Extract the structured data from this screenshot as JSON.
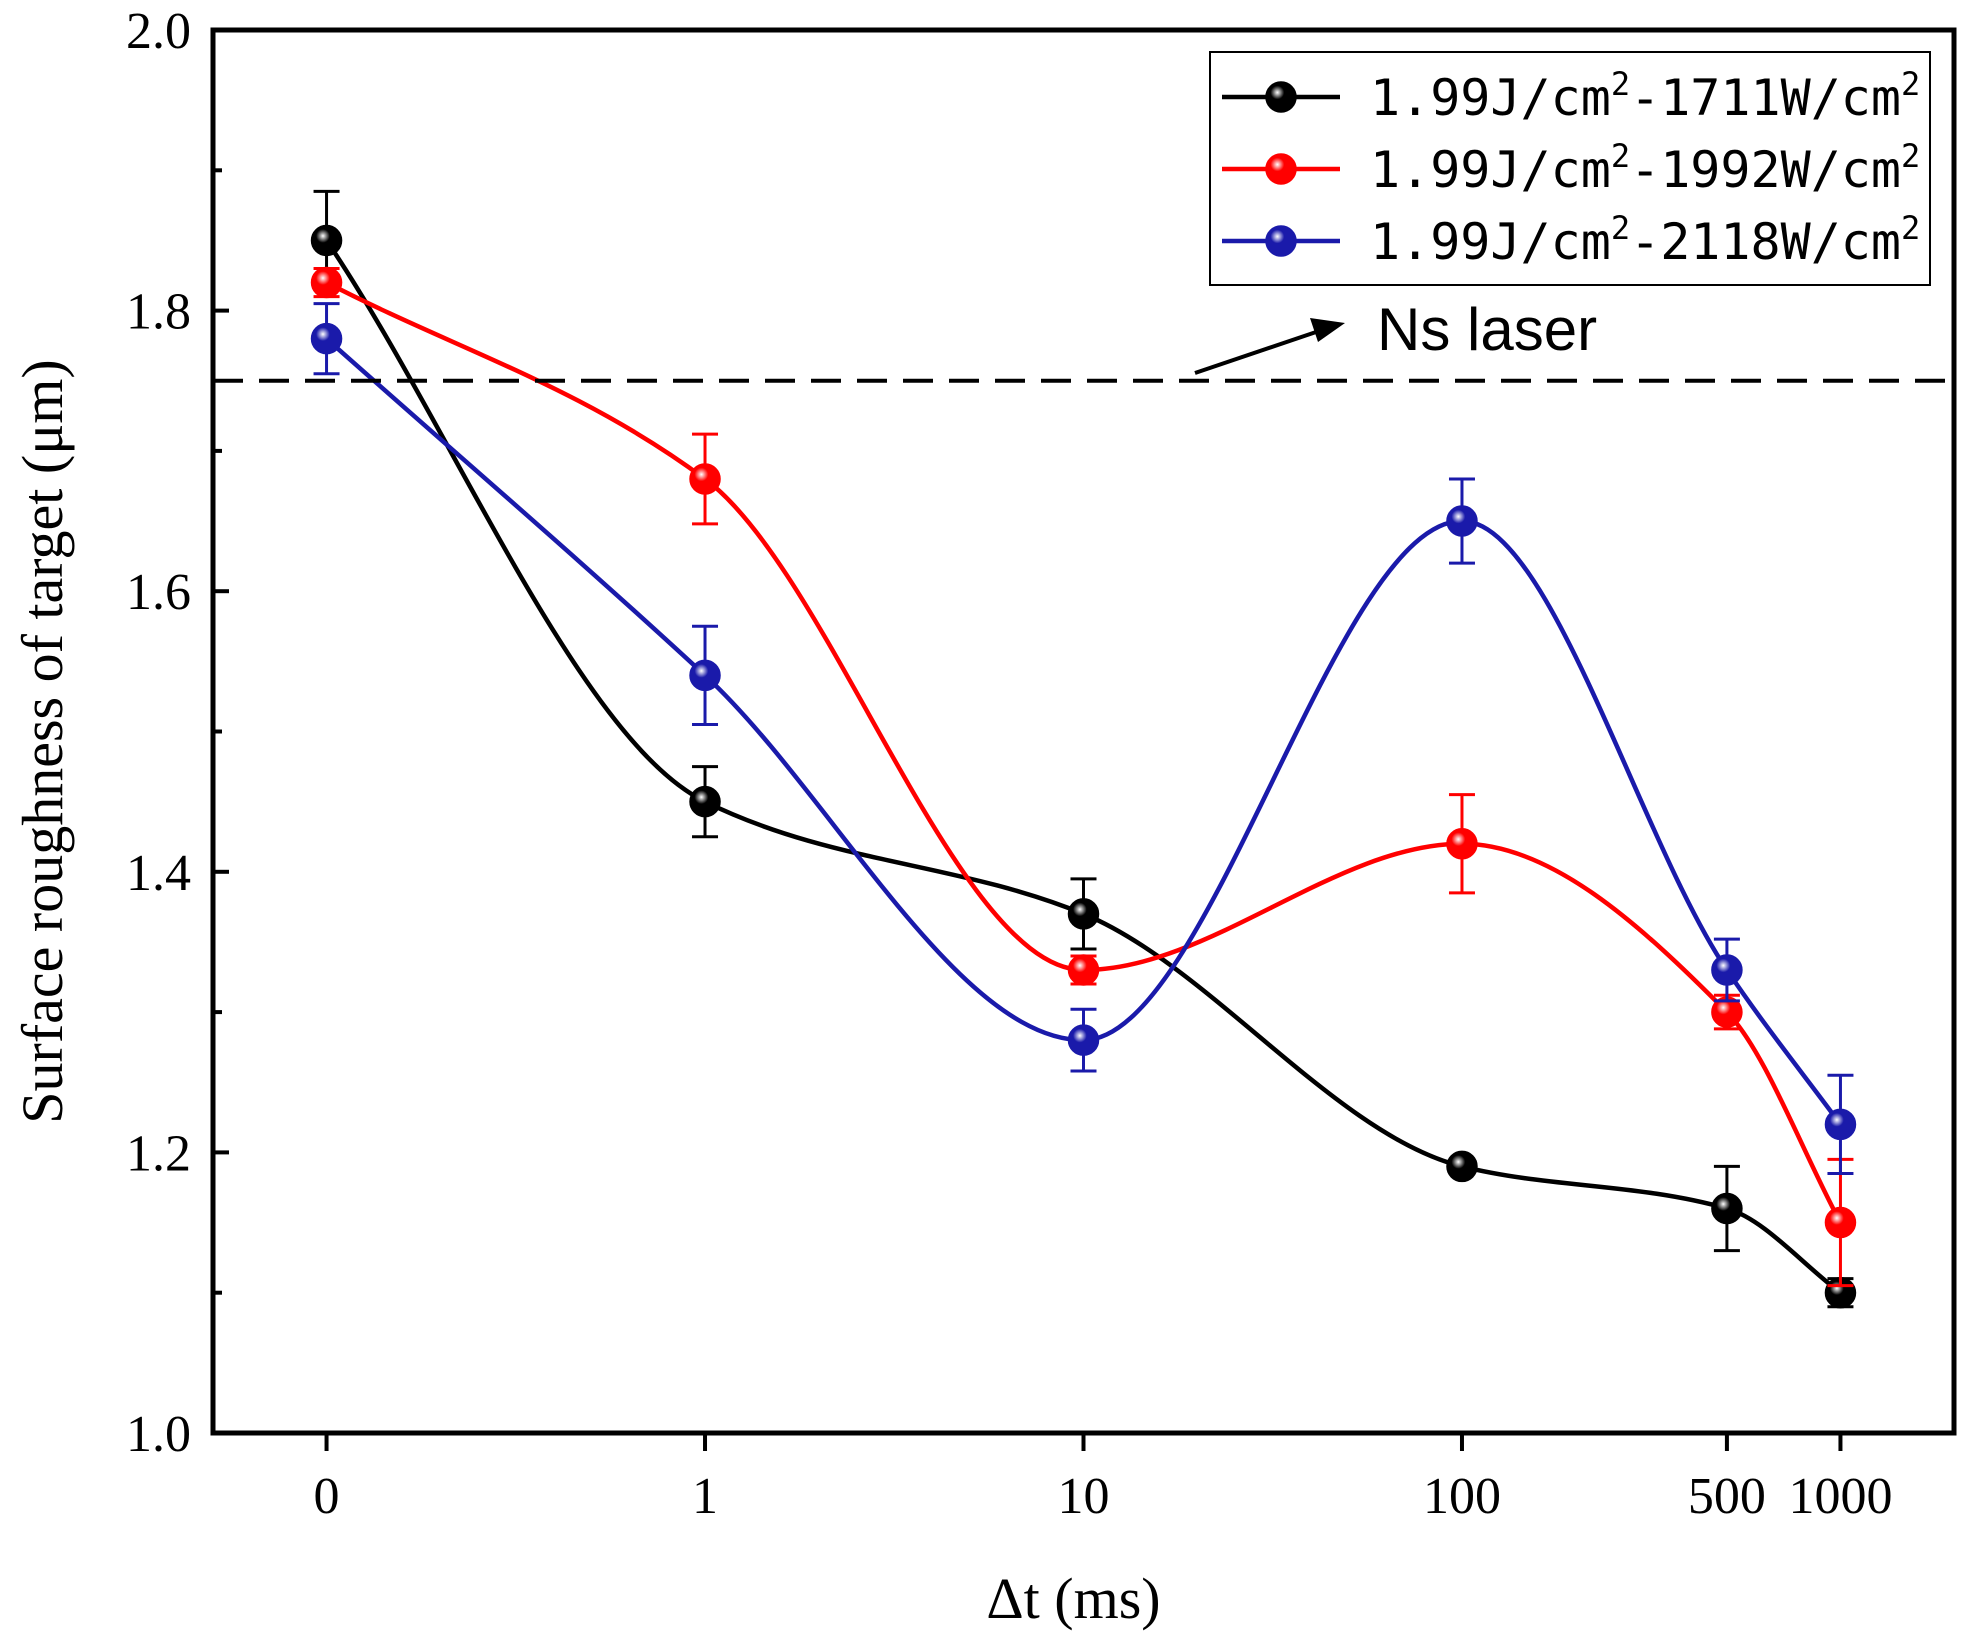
{
  "chart_data": {
    "type": "line",
    "title": "",
    "xlabel": "Δt (ms)",
    "ylabel": "Surface roughness of target (μm)",
    "categories": [
      "0",
      "1",
      "10",
      "100",
      "500",
      "1000"
    ],
    "x_positions": [
      0,
      1,
      2,
      3,
      3.7,
      4
    ],
    "xlim": [
      -0.3,
      4.3
    ],
    "ylim": [
      1.0,
      2.0
    ],
    "yticks": [
      "1.0",
      "1.2",
      "1.4",
      "1.6",
      "1.8",
      "2.0"
    ],
    "series": [
      {
        "name": "1.99J/cm²-1711W/cm²",
        "name_parts": [
          "1.99J/cm",
          "2",
          "-1711W/cm",
          "2"
        ],
        "color": "#000000",
        "values": [
          1.85,
          1.45,
          1.37,
          1.19,
          1.16,
          1.1
        ],
        "errors": [
          0.035,
          0.025,
          0.025,
          0.005,
          0.03,
          0.01
        ]
      },
      {
        "name": "1.99J/cm²-1992W/cm²",
        "name_parts": [
          "1.99J/cm",
          "2",
          "-1992W/cm",
          "2"
        ],
        "color": "#ff0000",
        "values": [
          1.82,
          1.68,
          1.33,
          1.42,
          1.3,
          1.15
        ],
        "errors": [
          0.01,
          0.032,
          0.01,
          0.035,
          0.012,
          0.045
        ]
      },
      {
        "name": "1.99J/cm²-2118W/cm²",
        "name_parts": [
          "1.99J/cm",
          "2",
          "-2118W/cm",
          "2"
        ],
        "color": "#1a1aaa",
        "values": [
          1.78,
          1.54,
          1.28,
          1.65,
          1.33,
          1.22
        ],
        "errors": [
          0.025,
          0.035,
          0.022,
          0.03,
          0.022,
          0.035
        ]
      }
    ],
    "reference_line": {
      "label": "Ns laser",
      "value": 1.75,
      "style": "dashed"
    },
    "legend_position": "top-right"
  }
}
